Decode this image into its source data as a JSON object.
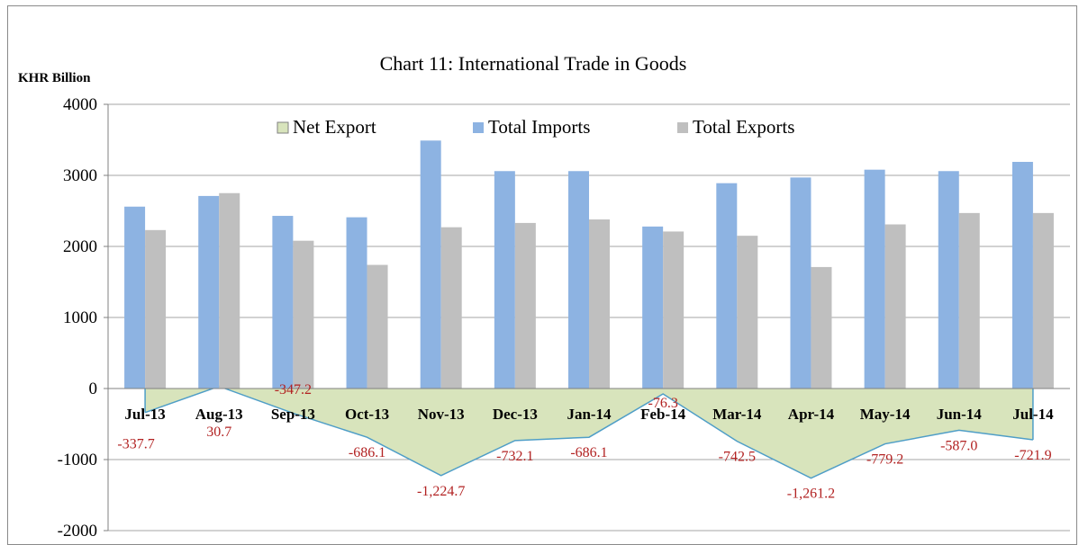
{
  "chart_data": {
    "type": "bar",
    "title": "Chart 11: International Trade in Goods",
    "ylabel": "KHR Billion",
    "ylim": [
      -2000,
      4000
    ],
    "yticks": [
      4000,
      3000,
      2000,
      1000,
      0,
      -1000,
      -2000
    ],
    "grid": true,
    "legend_position": "top",
    "categories": [
      "Jul-13",
      "Aug-13",
      "Sep-13",
      "Oct-13",
      "Nov-13",
      "Dec-13",
      "Jan-14",
      "Feb-14",
      "Mar-14",
      "Apr-14",
      "May-14",
      "Jun-14",
      "Jul-14"
    ],
    "series": [
      {
        "name": "Net Export",
        "type": "area",
        "color": "#d8e4bc",
        "line_color": "#4f9ec7",
        "values": [
          -337.7,
          30.7,
          -347.2,
          -686.1,
          -1224.7,
          -732.1,
          -686.1,
          -76.3,
          -742.5,
          -1261.2,
          -779.2,
          -587.0,
          -721.9
        ],
        "labels": [
          "-337.7",
          "30.7",
          "-347.2",
          "-686.1",
          "-1,224.7",
          "-732.1",
          "-686.1",
          "-76.3",
          "-742.5",
          "-1,261.2",
          "-779.2",
          "-587.0",
          "-721.9"
        ]
      },
      {
        "name": "Total Imports",
        "type": "bar",
        "color": "#8db3e2",
        "values": [
          2560,
          2710,
          2430,
          2410,
          3490,
          3060,
          3060,
          2280,
          2890,
          2970,
          3080,
          3060,
          3190
        ]
      },
      {
        "name": "Total Exports",
        "type": "bar",
        "color": "#bfbfbf",
        "values": [
          2230,
          2750,
          2080,
          1740,
          2270,
          2330,
          2380,
          2210,
          2150,
          1710,
          2310,
          2470,
          2470
        ]
      }
    ]
  }
}
